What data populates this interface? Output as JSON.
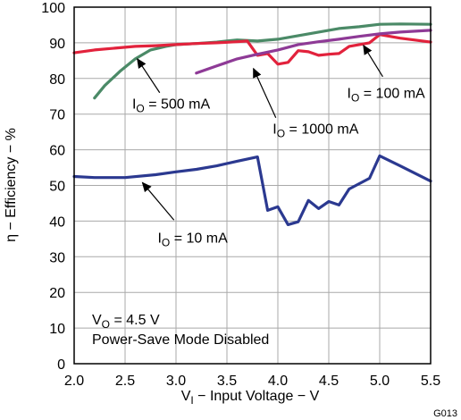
{
  "chart_data": {
    "type": "line",
    "xlabel_main": "V",
    "xlabel_sub": "I",
    "xlabel_rest": " − Input Voltage − V",
    "ylabel": "η − Efficiency − %",
    "xlim": [
      2.0,
      5.5
    ],
    "ylim": [
      0,
      100
    ],
    "grid": true,
    "x_ticks": [
      "2.0",
      "2.5",
      "3.0",
      "3.5",
      "4.0",
      "4.5",
      "5.0",
      "5.5"
    ],
    "y_ticks": [
      "0",
      "10",
      "20",
      "30",
      "40",
      "50",
      "60",
      "70",
      "80",
      "90",
      "100"
    ],
    "series": [
      {
        "name": "IO = 500 mA",
        "color": "#4b8a67",
        "points": [
          [
            2.2,
            74.5
          ],
          [
            2.3,
            78
          ],
          [
            2.45,
            82
          ],
          [
            2.6,
            85.5
          ],
          [
            2.75,
            88
          ],
          [
            2.9,
            89
          ],
          [
            3.0,
            89.5
          ],
          [
            3.2,
            89.8
          ],
          [
            3.4,
            90.2
          ],
          [
            3.6,
            90.8
          ],
          [
            3.8,
            90.5
          ],
          [
            4.0,
            91
          ],
          [
            4.2,
            92
          ],
          [
            4.4,
            93
          ],
          [
            4.6,
            94
          ],
          [
            4.8,
            94.5
          ],
          [
            5.0,
            95.2
          ],
          [
            5.2,
            95.3
          ],
          [
            5.5,
            95.2
          ]
        ]
      },
      {
        "name": "IO = 1000 mA",
        "color": "#e2223c",
        "points": [
          [
            2.0,
            87.2
          ],
          [
            2.2,
            88
          ],
          [
            2.4,
            88.5
          ],
          [
            2.6,
            89
          ],
          [
            2.8,
            89.2
          ],
          [
            3.0,
            89.5
          ],
          [
            3.2,
            89.8
          ],
          [
            3.4,
            90
          ],
          [
            3.6,
            90.3
          ],
          [
            3.7,
            90.5
          ],
          [
            3.8,
            86.5
          ],
          [
            3.9,
            87
          ],
          [
            4.0,
            84
          ],
          [
            4.1,
            84.5
          ],
          [
            4.2,
            87.8
          ],
          [
            4.3,
            87.5
          ],
          [
            4.4,
            86.5
          ],
          [
            4.5,
            86.8
          ],
          [
            4.6,
            87
          ],
          [
            4.7,
            89
          ],
          [
            4.8,
            89.5
          ],
          [
            4.9,
            90
          ],
          [
            5.0,
            92.3
          ],
          [
            5.2,
            91.3
          ],
          [
            5.5,
            90.2
          ]
        ]
      },
      {
        "name": "IO = 100 mA",
        "color": "#8e3a96",
        "points": [
          [
            3.2,
            81.5
          ],
          [
            3.4,
            83.5
          ],
          [
            3.6,
            85.5
          ],
          [
            3.8,
            86.8
          ],
          [
            4.0,
            88
          ],
          [
            4.2,
            89.5
          ],
          [
            4.4,
            90.3
          ],
          [
            4.6,
            91
          ],
          [
            4.8,
            91.8
          ],
          [
            5.0,
            92.5
          ],
          [
            5.2,
            93
          ],
          [
            5.5,
            93.5
          ]
        ]
      },
      {
        "name": "IO = 10 mA",
        "color": "#2b3990",
        "points": [
          [
            2.0,
            52.5
          ],
          [
            2.2,
            52.2
          ],
          [
            2.5,
            52.2
          ],
          [
            2.8,
            53
          ],
          [
            3.0,
            53.8
          ],
          [
            3.2,
            54.5
          ],
          [
            3.4,
            55.5
          ],
          [
            3.6,
            56.8
          ],
          [
            3.8,
            58
          ],
          [
            3.9,
            43
          ],
          [
            4.0,
            44
          ],
          [
            4.1,
            39
          ],
          [
            4.2,
            39.8
          ],
          [
            4.3,
            45.8
          ],
          [
            4.4,
            43.5
          ],
          [
            4.5,
            45.5
          ],
          [
            4.6,
            44.5
          ],
          [
            4.7,
            49
          ],
          [
            4.9,
            52
          ],
          [
            5.0,
            58.3
          ],
          [
            5.2,
            55.5
          ],
          [
            5.5,
            51.2
          ]
        ]
      }
    ],
    "annotations": [
      {
        "text_main": "I",
        "text_sub": "O",
        "text_rest": " = 500 mA",
        "label_at": [
          2.57,
          71.5
        ],
        "tip": [
          2.62,
          85.5
        ],
        "tail": [
          2.84,
          76
        ]
      },
      {
        "text_main": "I",
        "text_sub": "O",
        "text_rest": " = 1000 mA",
        "label_at": [
          3.95,
          64.5
        ],
        "tip": [
          3.76,
          82.8
        ],
        "tail": [
          3.98,
          69
        ]
      },
      {
        "text_main": "I",
        "text_sub": "O",
        "text_rest": " = 100 mA",
        "label_at": [
          4.68,
          74.5
        ],
        "tip": [
          4.84,
          89.3
        ],
        "tail": [
          5.03,
          80.5
        ]
      },
      {
        "text_main": "I",
        "text_sub": "O",
        "text_rest": " = 10 mA",
        "label_at": [
          2.82,
          34
        ],
        "tip": [
          2.67,
          50.8
        ],
        "tail": [
          2.98,
          40.3
        ]
      }
    ],
    "condition_line1_main": "V",
    "condition_line1_sub": "O",
    "condition_line1_rest": " = 4.5 V",
    "condition_line2": "Power-Save Mode Disabled",
    "figure_code": "G013"
  }
}
